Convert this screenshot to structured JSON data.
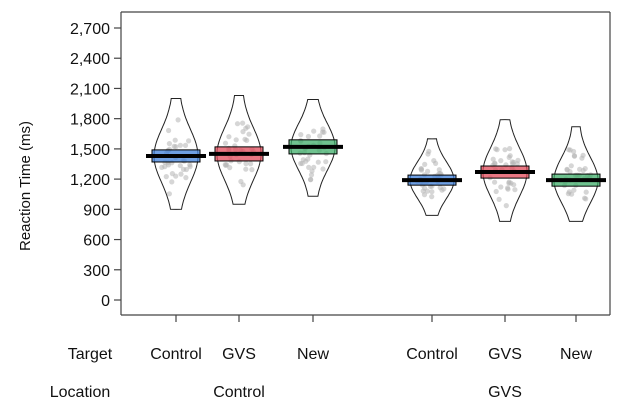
{
  "chart_data": {
    "type": "pirate",
    "ylabel": "Reaction Time (ms)",
    "ylim": [
      -150,
      2800
    ],
    "yticks": [
      "0",
      "300",
      "600",
      "900",
      "1,200",
      "1,500",
      "1,800",
      "2,100",
      "2,400",
      "2,700"
    ],
    "ytick_values": [
      0,
      300,
      600,
      900,
      1200,
      1500,
      1800,
      2100,
      2400,
      2700
    ],
    "row_labels": {
      "target": "Target",
      "location": "Location"
    },
    "groups": [
      {
        "location": "Control",
        "items": [
          {
            "target": "Control",
            "mean": 1430,
            "ci": [
              1370,
              1490
            ],
            "min": 900,
            "max": 2000,
            "color": "#3d7fd9"
          },
          {
            "target": "GVS",
            "mean": 1450,
            "ci": [
              1380,
              1520
            ],
            "min": 950,
            "max": 2030,
            "color": "#e04a5a"
          },
          {
            "target": "New",
            "mean": 1520,
            "ci": [
              1450,
              1590
            ],
            "min": 1030,
            "max": 1990,
            "color": "#3fae6a"
          }
        ]
      },
      {
        "location": "GVS",
        "items": [
          {
            "target": "Control",
            "mean": 1190,
            "ci": [
              1140,
              1240
            ],
            "min": 840,
            "max": 1600,
            "color": "#3d7fd9"
          },
          {
            "target": "GVS",
            "mean": 1270,
            "ci": [
              1210,
              1330
            ],
            "min": 780,
            "max": 1790,
            "color": "#e04a5a"
          },
          {
            "target": "New",
            "mean": 1190,
            "ci": [
              1130,
              1250
            ],
            "min": 780,
            "max": 1720,
            "color": "#3fae6a"
          }
        ]
      }
    ],
    "colors": {
      "axis": "#444444",
      "outline": "#222222",
      "points": "#b5b5b5",
      "mean_line": "#000000"
    }
  }
}
